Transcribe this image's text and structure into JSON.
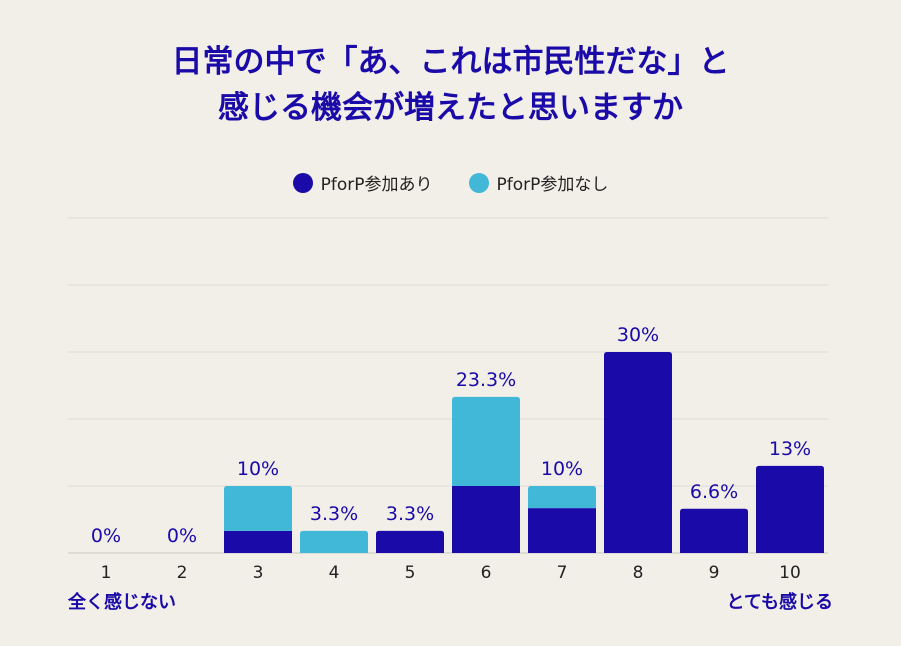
{
  "title_line1": "日常の中で「あ、これは市民性だな」と",
  "title_line2": "感じる機会が増えたと思いますか",
  "legend": [
    {
      "label": "PforP参加あり",
      "color": "#1a0aa8"
    },
    {
      "label": "PforP参加なし",
      "color": "#42b8d8"
    }
  ],
  "scale_low_label": "全く感じない",
  "scale_high_label": "とても感じる",
  "chart_data": {
    "type": "bar",
    "stacked": true,
    "title": "日常の中で「あ、これは市民性だな」と感じる機会が増えたと思いますか",
    "categories": [
      "1",
      "2",
      "3",
      "4",
      "5",
      "6",
      "7",
      "8",
      "9",
      "10"
    ],
    "series": [
      {
        "name": "PforP参加あり",
        "color": "#1a0aa8",
        "values": [
          0,
          0,
          3.3,
          0,
          3.3,
          10,
          6.7,
          30,
          6.6,
          13
        ]
      },
      {
        "name": "PforP参加なし",
        "color": "#42b8d8",
        "values": [
          0,
          0,
          6.7,
          3.3,
          0,
          13.3,
          3.3,
          0,
          0,
          0
        ]
      }
    ],
    "total_labels": [
      "0%",
      "0%",
      "10%",
      "3.3%",
      "3.3%",
      "23.3%",
      "10%",
      "30%",
      "6.6%",
      "13%"
    ],
    "ylim": [
      0,
      50
    ],
    "grid": true,
    "legend_position": "top-center"
  }
}
